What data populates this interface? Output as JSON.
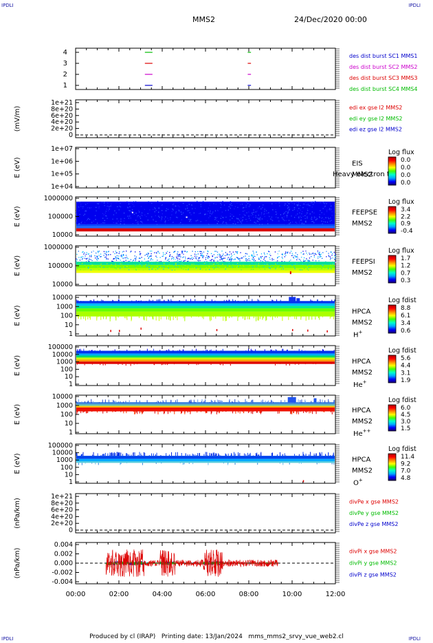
{
  "corners": {
    "tl": "IPDLI",
    "tr": "IPDLI",
    "bl": "IPDLI",
    "br": "IPDLI"
  },
  "header": {
    "spacecraft": "MMS2",
    "date": "24/Dec/2020 00:00"
  },
  "footer": {
    "producer": "Produced by cl (IRAP)",
    "print_date": "Printing date: 13/Jan/2024",
    "file": "mms_mms2_srvy_vue_web2.cl"
  },
  "colors": {
    "c1": "#0000cc",
    "c2": "#cc00cc",
    "c3": "#dd0000",
    "c4": "#00bb00",
    "dash": "#000000"
  },
  "chart_data": [
    {
      "id": "burst",
      "type": "line",
      "yticks": [
        "4",
        "3",
        "2",
        "1"
      ],
      "legend": [
        {
          "text": "des dist burst SC1 MMS1",
          "color": "#0000cc"
        },
        {
          "text": "des dist burst SC2 MMS2",
          "color": "#cc00cc"
        },
        {
          "text": "des dist burst SC3 MMS3",
          "color": "#dd0000"
        },
        {
          "text": "des dist burst SC4 MMS4",
          "color": "#00bb00"
        }
      ],
      "segments": [
        {
          "y": 4,
          "x": [
            3.2,
            3.55
          ],
          "color": "#00bb00"
        },
        {
          "y": 4,
          "x": [
            7.95,
            8.1
          ],
          "color": "#00bb00"
        },
        {
          "y": 3,
          "x": [
            3.2,
            3.55
          ],
          "color": "#dd0000"
        },
        {
          "y": 3,
          "x": [
            7.95,
            8.1
          ],
          "color": "#dd0000"
        },
        {
          "y": 2,
          "x": [
            3.2,
            3.55
          ],
          "color": "#cc00cc"
        },
        {
          "y": 2,
          "x": [
            7.95,
            8.1
          ],
          "color": "#cc00cc"
        },
        {
          "y": 1,
          "x": [
            3.2,
            3.55
          ],
          "color": "#0000cc"
        },
        {
          "y": 1,
          "x": [
            7.95,
            8.1
          ],
          "color": "#0000cc"
        }
      ]
    },
    {
      "id": "edi",
      "type": "line",
      "ylabel": "(mV/m)",
      "yticks": [
        "1e+21",
        "8e+20",
        "6e+20",
        "4e+20",
        "2e+20",
        "0"
      ],
      "legend": [
        {
          "text": "edi ex gse l2 MMS2",
          "color": "#dd0000"
        },
        {
          "text": "edi ey gse l2 MMS2",
          "color": "#00bb00"
        },
        {
          "text": "edi ez gse l2 MMS2",
          "color": "#0000cc"
        }
      ]
    },
    {
      "id": "eis",
      "type": "heatmap",
      "ylabel": "E (eV)",
      "yticks": [
        "1e+07",
        "1e+06",
        "1e+05",
        "1e+04"
      ],
      "label": [
        "EIS",
        "MMS2"
      ],
      "overlay": "Heavy electron to",
      "cbar_title": "Log flux",
      "cbar_ticks": [
        "0.0",
        "0.0",
        "0.0",
        "0.0"
      ]
    },
    {
      "id": "feepse",
      "type": "heatmap",
      "ylabel": "E (eV)",
      "yticks": [
        "1000000",
        "100000",
        "10000"
      ],
      "label": [
        "FEEPSE",
        "MMS2"
      ],
      "cbar_title": "Log flux",
      "cbar_ticks": [
        "3.4",
        "2.2",
        "0.9",
        "-0.4"
      ]
    },
    {
      "id": "feepsi",
      "type": "heatmap",
      "ylabel": "E (eV)",
      "yticks": [
        "1000000",
        "100000",
        "10000"
      ],
      "label": [
        "FEEPSI",
        "MMS2"
      ],
      "cbar_title": "Log flux",
      "cbar_ticks": [
        "1.7",
        "1.2",
        "0.7",
        "0.3"
      ]
    },
    {
      "id": "hpca_h",
      "type": "heatmap",
      "ylabel": "E (eV)",
      "yticks": [
        "10000",
        "1000",
        "100",
        "10",
        "1"
      ],
      "label": [
        "HPCA",
        "MMS2"
      ],
      "species": "H",
      "charge": "+",
      "cbar_title": "Log fdist",
      "cbar_ticks": [
        "8.8",
        "6.1",
        "3.4",
        "0.6"
      ]
    },
    {
      "id": "hpca_he",
      "type": "heatmap",
      "ylabel": "E (eV)",
      "yticks": [
        "100000",
        "10000",
        "1000",
        "100",
        "10",
        "1"
      ],
      "label": [
        "HPCA",
        "MMS2"
      ],
      "species": "He",
      "charge": "+",
      "cbar_title": "Log fdist",
      "cbar_ticks": [
        "5.6",
        "4.4",
        "3.1",
        "1.9"
      ]
    },
    {
      "id": "hpca_hepp",
      "type": "heatmap",
      "ylabel": "E (eV)",
      "yticks": [
        "10000",
        "1000",
        "100",
        "10",
        "1"
      ],
      "label": [
        "HPCA",
        "MMS2"
      ],
      "species": "He",
      "charge": "++",
      "cbar_title": "Log fdist",
      "cbar_ticks": [
        "6.0",
        "4.5",
        "3.0",
        "1.5"
      ]
    },
    {
      "id": "hpca_o",
      "type": "heatmap",
      "ylabel": "E (eV)",
      "yticks": [
        "100000",
        "10000",
        "1000",
        "100",
        "10",
        "1"
      ],
      "label": [
        "HPCA",
        "MMS2"
      ],
      "species": "O",
      "charge": "+",
      "cbar_title": "Log fdist",
      "cbar_ticks": [
        "11.4",
        "9.2",
        "7.0",
        "4.8"
      ]
    },
    {
      "id": "divpe",
      "type": "line",
      "ylabel": "(nPa/km)",
      "yticks": [
        "1e+21",
        "8e+20",
        "6e+20",
        "4e+20",
        "2e+20",
        "0"
      ],
      "legend": [
        {
          "text": "divPe x gse MMS2",
          "color": "#dd0000"
        },
        {
          "text": "divPe y gse MMS2",
          "color": "#00bb00"
        },
        {
          "text": "divPe z gse MMS2",
          "color": "#0000cc"
        }
      ]
    },
    {
      "id": "divpi",
      "type": "line",
      "ylabel": "(nPa/km)",
      "yticks": [
        "0.004",
        "0.002",
        "0.000",
        "-0.002",
        "-0.004"
      ],
      "data_range_hours": [
        1.4,
        9.35
      ],
      "legend": [
        {
          "text": "divPi x gse MMS2",
          "color": "#dd0000"
        },
        {
          "text": "divPi y gse MMS2",
          "color": "#00bb00"
        },
        {
          "text": "divPi z gse MMS2",
          "color": "#0000cc"
        }
      ]
    }
  ],
  "xaxis": {
    "ticks": [
      "00:00",
      "02:00",
      "04:00",
      "06:00",
      "08:00",
      "10:00",
      "12:00"
    ],
    "range_hours": [
      0,
      12
    ]
  }
}
